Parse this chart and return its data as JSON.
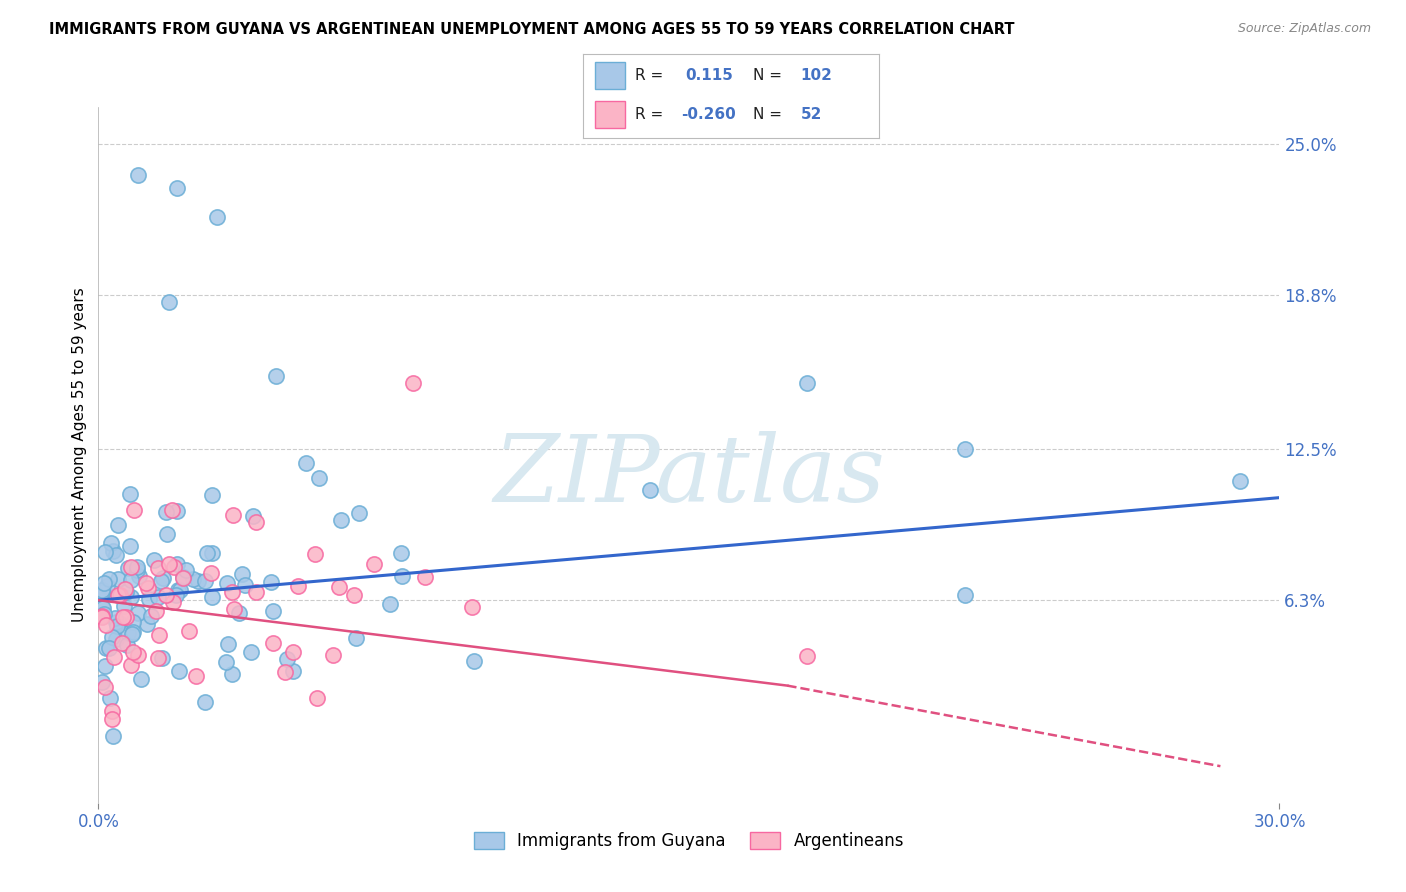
{
  "title": "IMMIGRANTS FROM GUYANA VS ARGENTINEAN UNEMPLOYMENT AMONG AGES 55 TO 59 YEARS CORRELATION CHART",
  "source": "Source: ZipAtlas.com",
  "ylabel": "Unemployment Among Ages 55 to 59 years",
  "x_min": 0.0,
  "x_max": 0.3,
  "y_min": -0.02,
  "y_max": 0.265,
  "x_ticks": [
    0.0,
    0.3
  ],
  "x_tick_labels": [
    "0.0%",
    "30.0%"
  ],
  "y_tick_values": [
    0.063,
    0.125,
    0.188,
    0.25
  ],
  "y_tick_labels": [
    "6.3%",
    "12.5%",
    "18.8%",
    "25.0%"
  ],
  "legend_r1": "0.115",
  "legend_n1": "102",
  "legend_r2": "-0.260",
  "legend_n2": "52",
  "blue_color": "#a8c8e8",
  "blue_edge_color": "#6baed6",
  "pink_color": "#fbb4c6",
  "pink_edge_color": "#f768a1",
  "blue_line_color": "#3366cc",
  "pink_line_color": "#e05080",
  "watermark_text": "ZIPatlas",
  "watermark_color": "#d8e8f0",
  "background_color": "#ffffff",
  "grid_color": "#cccccc",
  "label_color": "#4472c4",
  "title_color": "#000000",
  "blue_trend_x0": 0.0,
  "blue_trend_y0": 0.063,
  "blue_trend_x1": 0.3,
  "blue_trend_y1": 0.105,
  "pink_trend_x0": 0.0,
  "pink_trend_y0": 0.063,
  "pink_trend_solid_x1": 0.175,
  "pink_trend_solid_y1": 0.028,
  "pink_trend_dash_x1": 0.285,
  "pink_trend_dash_y1": -0.005
}
